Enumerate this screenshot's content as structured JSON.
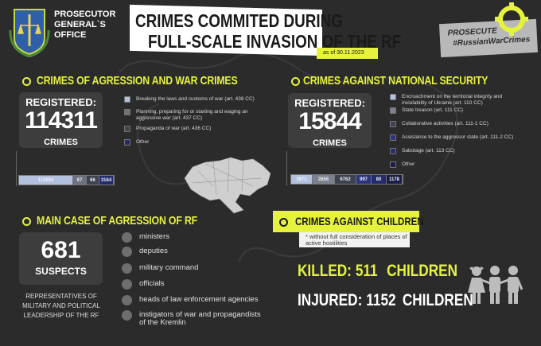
{
  "header": {
    "org_line1": "PROSECUTOR",
    "org_line2": "GENERAL`S",
    "org_line3": "OFFICE",
    "title_line1": "CRIMES COMMITED DURING",
    "title_line2": "FULL-SCALE INVASION OF THE RF",
    "date": "as of 30.11.2023",
    "badge_line1": "PROSECUTE",
    "badge_line2": "#RussianWarCrimes"
  },
  "colors": {
    "accent": "#e6f23e",
    "background": "#2b2b2b",
    "panel": "#3d3d3d"
  },
  "war_crimes": {
    "title": "CRIMES OF AGRESSION AND WAR CRIMES",
    "registered_label": "REGISTERED:",
    "count": "114311",
    "unit": "CRIMES",
    "legend": [
      {
        "label": "Breaking the laws and customs of war (art. 438 CC)",
        "color": "#b3c1de"
      },
      {
        "label": "Planning, preparing for or starting and waging an aggressive war (art. 437 CC)",
        "color": "#6c7080"
      },
      {
        "label": "Propaganda of war (art. 436 CC)",
        "color": "#3e4250"
      },
      {
        "label": "Other",
        "color": "#232a6e"
      }
    ],
    "bar": [
      {
        "value": "110994",
        "color": "#b3c1de"
      },
      {
        "value": "87",
        "color": "#6c7080"
      },
      {
        "value": "66",
        "color": "#3e4250"
      },
      {
        "value": "3164",
        "color": "#232a6e"
      }
    ]
  },
  "national_security": {
    "title": "CRIMES AGAINST NATIONAL SECURITY",
    "registered_label": "REGISTERED:",
    "count": "15844",
    "unit": "CRIMES",
    "legend": [
      {
        "label": "Encroachment on the territorial integrity and inviolability of Ukraine (art. 110 CC)",
        "color": "#b3c1de"
      },
      {
        "label": "State treason (art. 111 CC)",
        "color": "#7d8090"
      },
      {
        "label": "Collaborative activities (art. 111-1 CC)",
        "color": "#3e4250"
      },
      {
        "label": "Assistance to the aggressor state (art. 111-2 CC)",
        "color": "#2c3480"
      },
      {
        "label": "Sabotage (art. 113 CC)",
        "color": "#232a6e"
      },
      {
        "label": "Other",
        "color": "#1a1e48"
      }
    ],
    "bar": [
      {
        "value": "3971",
        "color": "#b3c1de"
      },
      {
        "value": "2856",
        "color": "#7d8090"
      },
      {
        "value": "6762",
        "color": "#3e4250"
      },
      {
        "value": "997",
        "color": "#2c3480"
      },
      {
        "value": "80",
        "color": "#232a6e"
      },
      {
        "value": "1178",
        "color": "#1a1e48"
      }
    ]
  },
  "main_case": {
    "title": "MAIN CASE OF AGRESSION OF RF",
    "count": "681",
    "unit": "SUSPECTS",
    "description": "REPRESENTATIVES OF MILITARY AND POLITICAL LEADERSHIP OF THE RF",
    "items": [
      "ministers",
      "deputies",
      "military command",
      "officials",
      "heads of law enforcement agencies",
      "instigators of war and propagandists of the Kremlin"
    ]
  },
  "children": {
    "title": "CRIMES AGAINST CHILDREN",
    "note": "* without full consideration of places of active hostilities",
    "killed_label": "KILLED:",
    "killed": "511",
    "injured_label": "INJURED:",
    "injured": "1152",
    "unit": "CHILDREN"
  }
}
